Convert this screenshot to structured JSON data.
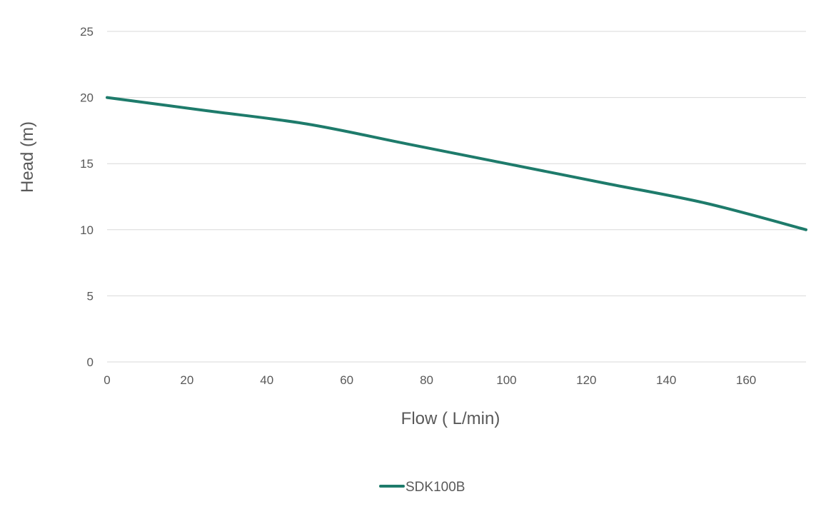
{
  "chart_data": {
    "type": "line",
    "title": "",
    "xlabel": "Flow ( L/min)",
    "ylabel": "Head (m)",
    "xlim": [
      0,
      175
    ],
    "ylim": [
      0,
      25
    ],
    "x_ticks": [
      "0",
      "20",
      "40",
      "60",
      "80",
      "100",
      "120",
      "140",
      "160"
    ],
    "y_ticks": [
      "0",
      "5",
      "10",
      "15",
      "20",
      "25"
    ],
    "grid": "horizontal",
    "legend_position": "bottom",
    "series": [
      {
        "name": "SDK100B",
        "color": "#1e7b6b",
        "x": [
          0,
          25,
          50,
          75,
          100,
          125,
          150,
          175
        ],
        "y": [
          20,
          19,
          18,
          16.5,
          15,
          13.5,
          12,
          10
        ]
      }
    ]
  }
}
